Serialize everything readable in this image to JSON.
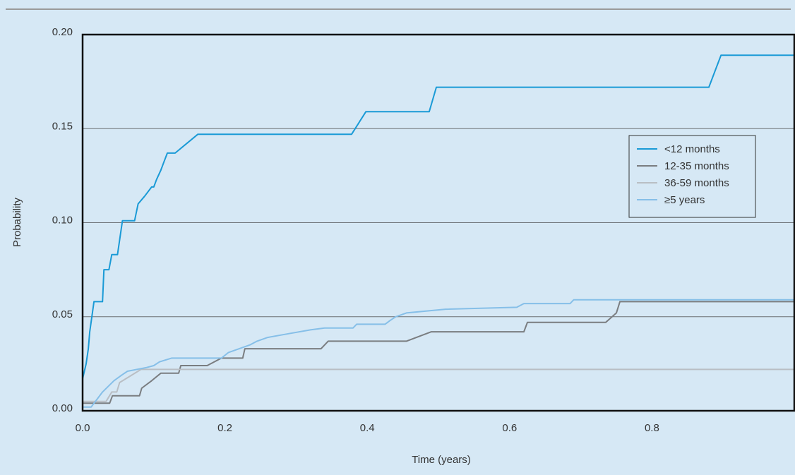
{
  "chart_data": {
    "type": "line",
    "title": "",
    "xlabel": "Time (years)",
    "ylabel": "Probability",
    "xlim": [
      0,
      1.0
    ],
    "ylim": [
      0,
      0.2
    ],
    "x_ticks": [
      0.0,
      0.2,
      0.4,
      0.6,
      0.8
    ],
    "x_tick_labels": [
      "0.0",
      "0.2",
      "0.4",
      "0.6",
      "0.8"
    ],
    "y_ticks": [
      0.0,
      0.05,
      0.1,
      0.15,
      0.2
    ],
    "y_tick_labels": [
      "0.00",
      "0.05",
      "0.10",
      "0.15",
      "0.20"
    ],
    "grid": "horizontal",
    "legend_position": "right",
    "background_color": "#d6e8f5",
    "series": [
      {
        "name": "<12 months",
        "color": "#1a9ad6",
        "points": [
          [
            0.0,
            0.017
          ],
          [
            0.005,
            0.025
          ],
          [
            0.008,
            0.033
          ],
          [
            0.01,
            0.042
          ],
          [
            0.013,
            0.05
          ],
          [
            0.016,
            0.058
          ],
          [
            0.028,
            0.058
          ],
          [
            0.03,
            0.075
          ],
          [
            0.037,
            0.075
          ],
          [
            0.041,
            0.083
          ],
          [
            0.049,
            0.083
          ],
          [
            0.056,
            0.101
          ],
          [
            0.073,
            0.101
          ],
          [
            0.078,
            0.11
          ],
          [
            0.087,
            0.114
          ],
          [
            0.097,
            0.119
          ],
          [
            0.1,
            0.119
          ],
          [
            0.104,
            0.123
          ],
          [
            0.11,
            0.128
          ],
          [
            0.114,
            0.132
          ],
          [
            0.119,
            0.137
          ],
          [
            0.13,
            0.137
          ],
          [
            0.162,
            0.147
          ],
          [
            0.378,
            0.147
          ],
          [
            0.398,
            0.159
          ],
          [
            0.487,
            0.159
          ],
          [
            0.497,
            0.172
          ],
          [
            0.88,
            0.172
          ],
          [
            0.897,
            0.189
          ],
          [
            1.0,
            0.189
          ]
        ]
      },
      {
        "name": "12-35 months",
        "color": "#7a7d80",
        "points": [
          [
            0.0,
            0.004
          ],
          [
            0.038,
            0.004
          ],
          [
            0.042,
            0.008
          ],
          [
            0.08,
            0.008
          ],
          [
            0.083,
            0.012
          ],
          [
            0.097,
            0.016
          ],
          [
            0.11,
            0.02
          ],
          [
            0.135,
            0.02
          ],
          [
            0.138,
            0.024
          ],
          [
            0.175,
            0.024
          ],
          [
            0.195,
            0.028
          ],
          [
            0.225,
            0.028
          ],
          [
            0.228,
            0.033
          ],
          [
            0.335,
            0.033
          ],
          [
            0.345,
            0.037
          ],
          [
            0.455,
            0.037
          ],
          [
            0.49,
            0.042
          ],
          [
            0.62,
            0.042
          ],
          [
            0.625,
            0.047
          ],
          [
            0.735,
            0.047
          ],
          [
            0.75,
            0.052
          ],
          [
            0.755,
            0.058
          ],
          [
            1.0,
            0.058
          ]
        ]
      },
      {
        "name": "36-59 months",
        "color": "#b9bec4",
        "points": [
          [
            0.0,
            0.005
          ],
          [
            0.033,
            0.005
          ],
          [
            0.041,
            0.01
          ],
          [
            0.048,
            0.01
          ],
          [
            0.052,
            0.015
          ],
          [
            0.065,
            0.018
          ],
          [
            0.082,
            0.022
          ],
          [
            1.0,
            0.022
          ]
        ]
      },
      {
        "name": "≥5 years",
        "color": "#86bfe8",
        "points": [
          [
            0.0,
            0.002
          ],
          [
            0.012,
            0.002
          ],
          [
            0.02,
            0.006
          ],
          [
            0.028,
            0.01
          ],
          [
            0.036,
            0.013
          ],
          [
            0.044,
            0.016
          ],
          [
            0.055,
            0.019
          ],
          [
            0.063,
            0.021
          ],
          [
            0.09,
            0.023
          ],
          [
            0.1,
            0.024
          ],
          [
            0.108,
            0.026
          ],
          [
            0.125,
            0.028
          ],
          [
            0.195,
            0.028
          ],
          [
            0.205,
            0.031
          ],
          [
            0.22,
            0.033
          ],
          [
            0.235,
            0.035
          ],
          [
            0.245,
            0.037
          ],
          [
            0.26,
            0.039
          ],
          [
            0.29,
            0.041
          ],
          [
            0.32,
            0.043
          ],
          [
            0.34,
            0.044
          ],
          [
            0.38,
            0.044
          ],
          [
            0.385,
            0.046
          ],
          [
            0.425,
            0.046
          ],
          [
            0.432,
            0.048
          ],
          [
            0.44,
            0.05
          ],
          [
            0.455,
            0.052
          ],
          [
            0.51,
            0.054
          ],
          [
            0.61,
            0.055
          ],
          [
            0.62,
            0.057
          ],
          [
            0.685,
            0.057
          ],
          [
            0.69,
            0.059
          ],
          [
            1.0,
            0.059
          ]
        ]
      }
    ]
  }
}
